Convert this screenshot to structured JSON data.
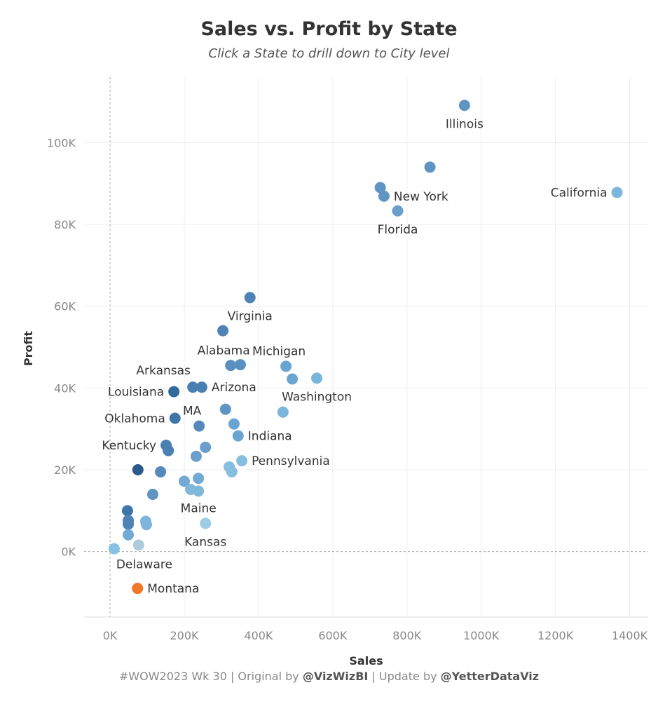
{
  "header": {
    "title": "Sales vs. Profit by State",
    "subtitle": "Click a State to drill down to City level"
  },
  "footer": {
    "part1": "#WOW2023 Wk 30 | Original by ",
    "handle1": "@VizWizBI",
    "part2": " | Update by ",
    "handle2": "@YetterDataViz"
  },
  "chart_data": {
    "type": "scatter",
    "title": "Sales vs. Profit by State",
    "xlabel": "Sales",
    "ylabel": "Profit",
    "xlim": [
      -70,
      1450
    ],
    "ylim": [
      -16,
      116
    ],
    "unit": "K",
    "grid": true,
    "xticks": [
      "0K",
      "200K",
      "400K",
      "600K",
      "800K",
      "1000K",
      "1200K",
      "1400K"
    ],
    "yticks": [
      "0K",
      "20K",
      "40K",
      "60K",
      "80K",
      "100K"
    ],
    "xtick_values": [
      0,
      200,
      400,
      600,
      800,
      1000,
      1200,
      1400
    ],
    "ytick_values": [
      0,
      20,
      40,
      60,
      80,
      100
    ],
    "points": [
      {
        "x": 955,
        "y": 109.1,
        "label": "Illinois",
        "label_pos": "below",
        "color": "#5f94c3"
      },
      {
        "x": 862,
        "y": 94.0,
        "color": "#5f94c3"
      },
      {
        "x": 728,
        "y": 89.0,
        "color": "#5f94c3"
      },
      {
        "x": 738,
        "y": 86.9,
        "label": "New York",
        "label_pos": "right",
        "color": "#5f94c3"
      },
      {
        "x": 775,
        "y": 83.3,
        "label": "Florida",
        "label_pos": "below",
        "color": "#6a9fcc"
      },
      {
        "x": 1366,
        "y": 87.8,
        "label": "California",
        "label_pos": "left",
        "color": "#7db6dc"
      },
      {
        "x": 377,
        "y": 62.1,
        "label": "Virginia",
        "label_pos": "below",
        "color": "#4f83b6"
      },
      {
        "x": 304,
        "y": 54.0,
        "color": "#4f83b6"
      },
      {
        "x": 325,
        "y": 45.5,
        "label": "Alabama",
        "label_pos": "above",
        "color": "#5a8fc0"
      },
      {
        "x": 351,
        "y": 45.7,
        "color": "#5a8fc0"
      },
      {
        "x": 474,
        "y": 45.3,
        "label": "Michigan",
        "label_pos": "above",
        "color": "#6aa5d1"
      },
      {
        "x": 491,
        "y": 42.2,
        "color": "#6aa5d1"
      },
      {
        "x": 557,
        "y": 42.4,
        "label": "Washington",
        "label_pos": "below",
        "color": "#7ab5db"
      },
      {
        "x": 172,
        "y": 39.1,
        "label": "Louisiana",
        "label_pos": "left",
        "color": "#336a9e"
      },
      {
        "x": 223,
        "y": 40.2,
        "label": "Arkansas",
        "label_pos": "above-left",
        "color": "#4a7fb1"
      },
      {
        "x": 247,
        "y": 40.2,
        "label": "Arizona",
        "label_pos": "right",
        "color": "#4a7fb1"
      },
      {
        "x": 466,
        "y": 34.1,
        "color": "#7ab5db"
      },
      {
        "x": 311,
        "y": 34.8,
        "color": "#5f94c3"
      },
      {
        "x": 175,
        "y": 32.6,
        "label": "Oklahoma",
        "label_pos": "left",
        "color": "#3f76a9"
      },
      {
        "x": 240,
        "y": 30.7,
        "label": "MA",
        "label_pos": "above",
        "color": "#5589bb"
      },
      {
        "x": 334,
        "y": 31.2,
        "color": "#6aa5d1"
      },
      {
        "x": 345,
        "y": 28.3,
        "label": "Indiana",
        "label_pos": "right",
        "color": "#6aa5d1"
      },
      {
        "x": 151,
        "y": 26.0,
        "label": "Kentucky",
        "label_pos": "left",
        "color": "#4a7fb1"
      },
      {
        "x": 157,
        "y": 24.7,
        "color": "#4a7fb1"
      },
      {
        "x": 257,
        "y": 25.5,
        "color": "#6a9fcc"
      },
      {
        "x": 232,
        "y": 23.3,
        "color": "#6a9fcc"
      },
      {
        "x": 75,
        "y": 20.0,
        "color": "#2a5a8a"
      },
      {
        "x": 136,
        "y": 19.5,
        "color": "#5589bb"
      },
      {
        "x": 355,
        "y": 22.2,
        "label": "Pennsylvania",
        "label_pos": "right",
        "color": "#86bee0"
      },
      {
        "x": 321,
        "y": 20.7,
        "color": "#86bee0"
      },
      {
        "x": 328,
        "y": 19.5,
        "color": "#86bee0"
      },
      {
        "x": 200,
        "y": 17.2,
        "color": "#72aad4"
      },
      {
        "x": 238,
        "y": 17.9,
        "color": "#72aad4"
      },
      {
        "x": 217,
        "y": 15.2,
        "color": "#80b8dc"
      },
      {
        "x": 238,
        "y": 14.8,
        "color": "#80b8dc"
      },
      {
        "x": 115,
        "y": 14.0,
        "color": "#5f94c3"
      },
      {
        "x": 47,
        "y": 10.0,
        "color": "#3f76a9"
      },
      {
        "x": 49,
        "y": 7.6,
        "color": "#4f83b6"
      },
      {
        "x": 49,
        "y": 6.7,
        "color": "#4f83b6"
      },
      {
        "x": 96,
        "y": 7.4,
        "color": "#7db6dc"
      },
      {
        "x": 98,
        "y": 6.6,
        "color": "#7db6dc"
      },
      {
        "x": 257,
        "y": 6.9,
        "label": "Maine",
        "label_pos": "above",
        "label2": "Kansas",
        "label2_pos": "below",
        "color": "#9ccbe6"
      },
      {
        "x": 49,
        "y": 4.1,
        "color": "#72aad4"
      },
      {
        "x": 11,
        "y": 0.7,
        "label": "Delaware",
        "label_pos": "below-right",
        "color": "#86c2e3"
      },
      {
        "x": 77,
        "y": 1.6,
        "color": "#acccd9"
      },
      {
        "x": 74,
        "y": -9.0,
        "label": "Montana",
        "label_pos": "right",
        "color": "#ef7726"
      }
    ]
  }
}
